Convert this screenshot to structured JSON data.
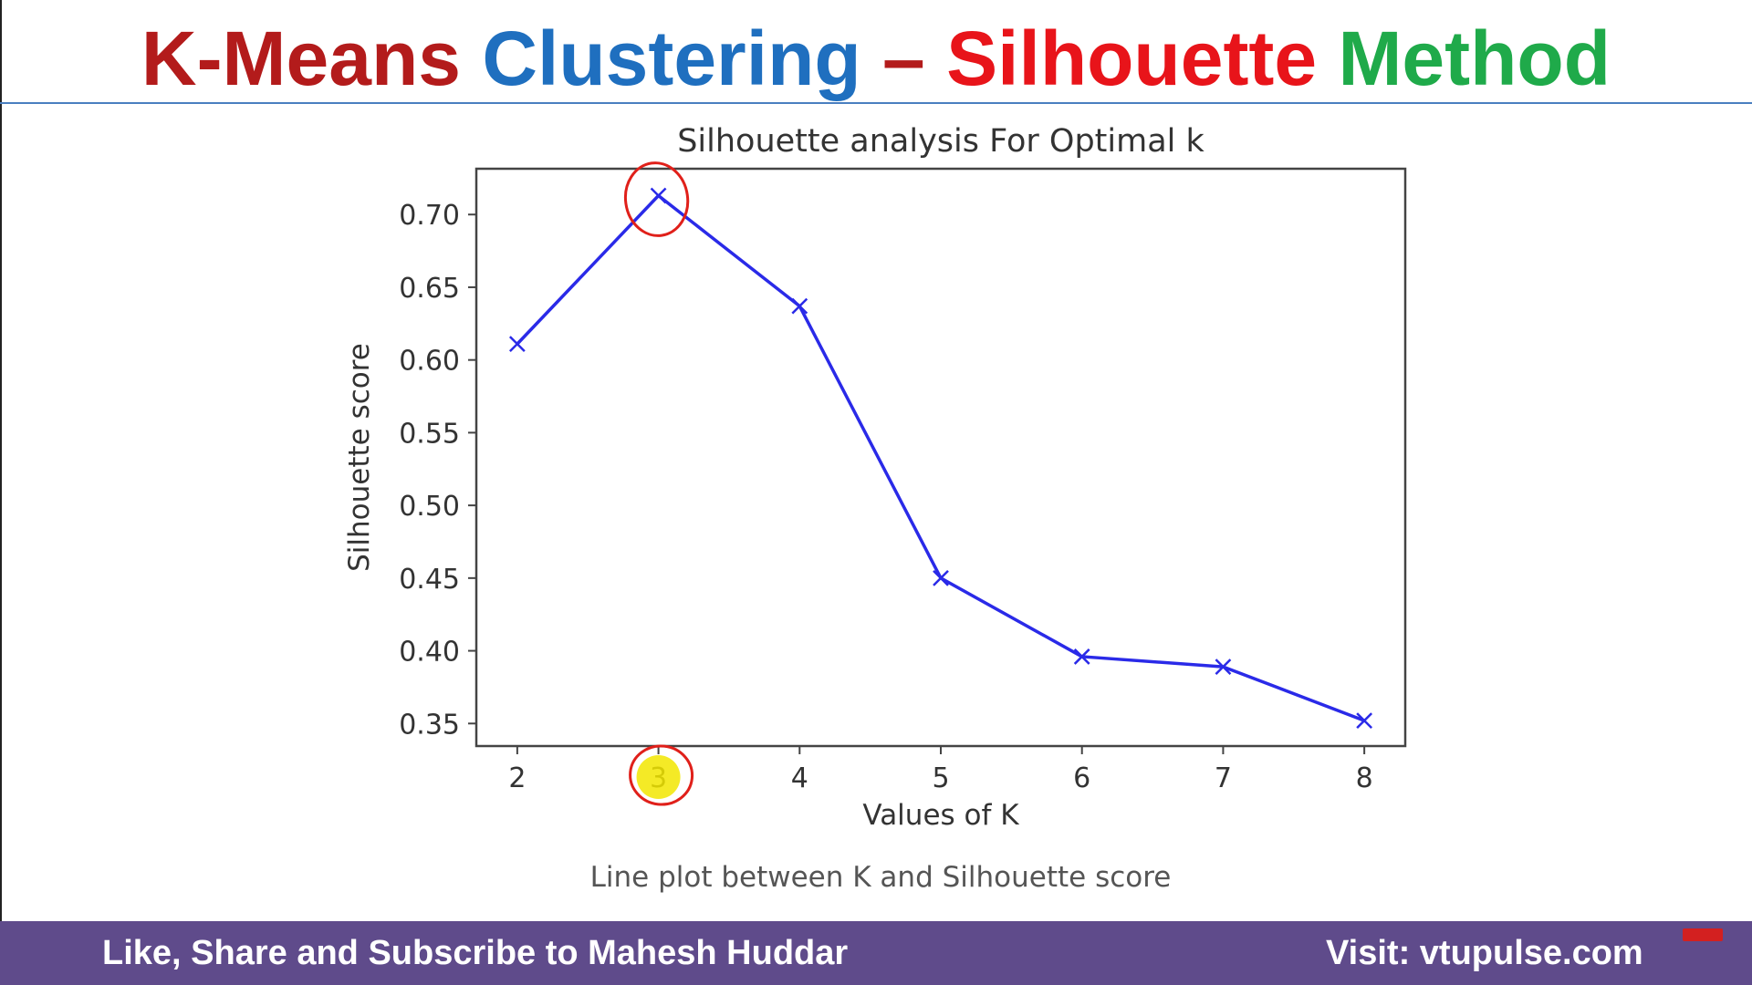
{
  "slide": {
    "title_parts": [
      {
        "text": "K-Means ",
        "color": "#b31b1b"
      },
      {
        "text": "Clustering",
        "color": "#1f6fbf"
      },
      {
        "text": " – ",
        "color": "#b31b1b"
      },
      {
        "text": "Silhouette",
        "color": "#e8141a"
      },
      {
        "text": " Method",
        "color": "#1faa4a"
      }
    ],
    "caption": "Line plot between K and Silhouette score"
  },
  "footer": {
    "left_text": "Like, Share and Subscribe to Mahesh Huddar",
    "right_text": "Visit: vtupulse.com",
    "background": "#5f4b8b"
  },
  "chart_data": {
    "type": "line",
    "title": "Silhouette analysis For Optimal k",
    "xlabel": "Values of K",
    "ylabel": "Silhouette score",
    "x": [
      2,
      3,
      4,
      5,
      6,
      7,
      8
    ],
    "series": [
      {
        "values": [
          0.611,
          0.713,
          0.637,
          0.45,
          0.396,
          0.389,
          0.352
        ],
        "color": "#2a2ae8",
        "marker": "x"
      }
    ],
    "xticks": [
      "2",
      "3",
      "4",
      "5",
      "6",
      "7",
      "8"
    ],
    "yticks": [
      "0.35",
      "0.40",
      "0.45",
      "0.50",
      "0.55",
      "0.60",
      "0.65",
      "0.70"
    ],
    "xlim": [
      1.71,
      8.29
    ],
    "ylim": [
      0.3345,
      0.7315
    ],
    "grid": false,
    "annotations": [
      {
        "shape": "circle",
        "color": "#e0201a",
        "target": "peak point k=3"
      },
      {
        "shape": "circle",
        "color": "#e0201a",
        "target": "x tick 3"
      },
      {
        "shape": "highlight",
        "color": "#f2e600",
        "target": "x tick 3"
      }
    ]
  }
}
